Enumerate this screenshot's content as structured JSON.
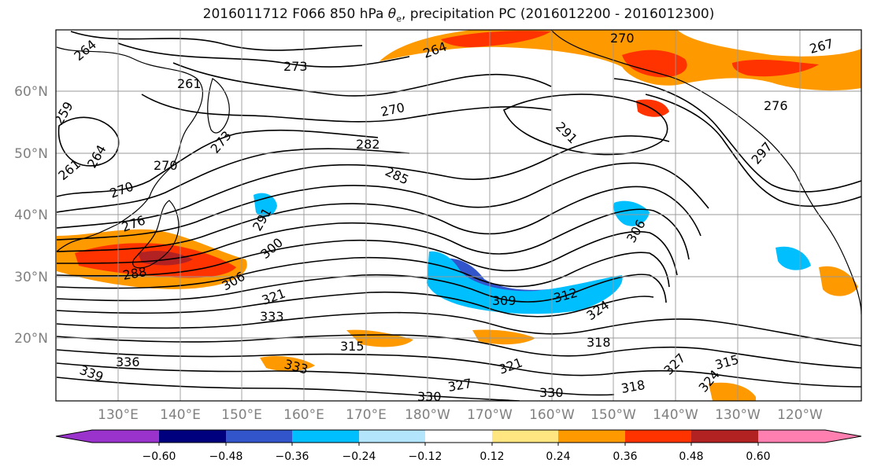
{
  "title": {
    "prefix": "2016011712 F066 850 hPa ",
    "theta": "θ",
    "theta_sub": "e",
    "suffix": ", precipitation PC (2016012200 - 2016012300)"
  },
  "map": {
    "lat_labels": [
      "60°N",
      "50°N",
      "40°N",
      "30°N",
      "20°N"
    ],
    "lon_labels": [
      "130°E",
      "140°E",
      "150°E",
      "160°E",
      "170°E",
      "180°W",
      "170°W",
      "160°W",
      "150°W",
      "140°W",
      "130°W",
      "120°W"
    ],
    "contour_labels": [
      "264",
      "273",
      "270",
      "261",
      "270",
      "259",
      "264",
      "261",
      "270",
      "276",
      "273",
      "282",
      "285",
      "291",
      "300",
      "288",
      "306",
      "321",
      "333",
      "309",
      "312",
      "324",
      "315",
      "318",
      "327",
      "336",
      "339",
      "333",
      "330",
      "321",
      "330",
      "327",
      "315",
      "318",
      "324",
      "291",
      "270",
      "267",
      "264",
      "276",
      "297",
      "306"
    ],
    "colors": {
      "contour": "#000000",
      "grid": "#999999",
      "coast": "#000000"
    }
  },
  "colorbar": {
    "tick_labels": [
      "−0.60",
      "−0.48",
      "−0.36",
      "−0.24",
      "−0.12",
      "0.12",
      "0.24",
      "0.36",
      "0.48",
      "0.60"
    ],
    "colors": [
      "#9933cc",
      "#00007f",
      "#3355cc",
      "#00bfff",
      "#b3e5fc",
      "#ffffff",
      "#ffe680",
      "#ff9900",
      "#ff3300",
      "#b22222",
      "#ff80b0"
    ]
  }
}
